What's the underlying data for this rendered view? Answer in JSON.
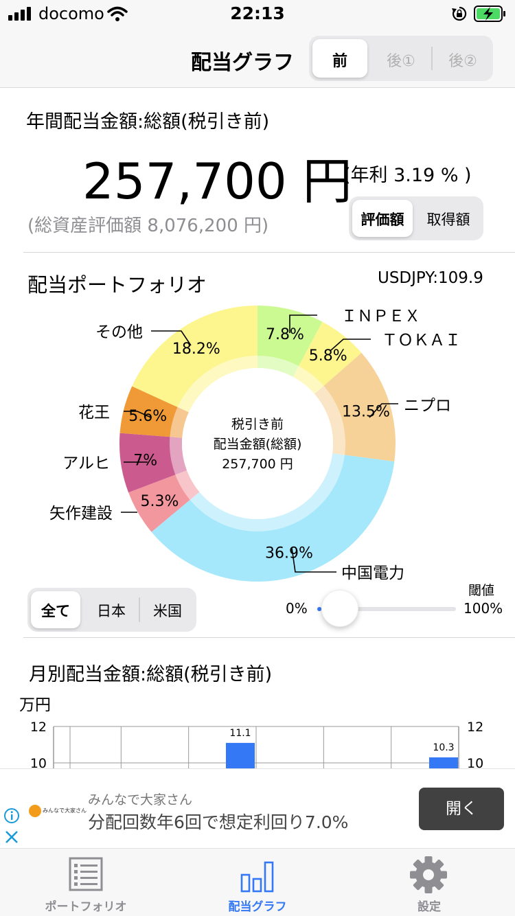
{
  "status": {
    "carrier": "docomo",
    "time": "22:13"
  },
  "nav": {
    "title": "配当グラフ",
    "segments": [
      "前",
      "後①",
      "後②"
    ],
    "selected": 0
  },
  "summary": {
    "heading": "年間配当金額:総額(税引き前)",
    "amount": "257,700 円",
    "yield": "(年利 3.19 % )",
    "assets": "(総資産評価額 8,076,200 円)",
    "toggle": [
      "評価額",
      "取得額"
    ],
    "toggle_selected": 0
  },
  "portfolio": {
    "heading": "配当ポートフォリオ",
    "fx": "USDJPY:109.9",
    "center_lines": [
      "税引き前",
      "配当金額(総額)",
      "257,700 円"
    ],
    "filter": [
      "全て",
      "日本",
      "米国"
    ],
    "filter_selected": 0,
    "threshold_label": "閾値",
    "threshold_min": "0%",
    "threshold_max": "100%",
    "threshold_value": 0
  },
  "chart_data": [
    {
      "type": "pie",
      "slices": [
        {
          "name": "ＩＮＰＥＸ",
          "value": 7.8,
          "label": "7.8%",
          "color": "#ccfa92"
        },
        {
          "name": "ＴＯＫＡＩ",
          "value": 5.8,
          "label": "5.8%",
          "color": "#fdf58e"
        },
        {
          "name": "ニプロ",
          "value": 13.5,
          "label": "13.5%",
          "color": "#f6d298"
        },
        {
          "name": "中国電力",
          "value": 36.9,
          "label": "36.9%",
          "color": "#a6e8fb"
        },
        {
          "name": "矢作建設",
          "value": 5.3,
          "label": "5.3%",
          "color": "#f3979e"
        },
        {
          "name": "アルヒ",
          "value": 7.0,
          "label": "7%",
          "color": "#cb5a8e"
        },
        {
          "name": "花王",
          "value": 5.6,
          "label": "5.6%",
          "color": "#f09a37"
        },
        {
          "name": "その他",
          "value": 18.2,
          "label": "18.2%",
          "color": "#fdf58e"
        }
      ]
    },
    {
      "type": "bar",
      "title": "月別配当金額:総額(税引き前)",
      "ylabel": "万円",
      "y_ticks": [
        "12",
        "10"
      ],
      "ylim_visible": [
        10,
        12
      ],
      "bars": [
        {
          "slot": 3,
          "value": 11.1,
          "label": "11.1"
        },
        {
          "slot": 6,
          "value": 10.3,
          "label": "10.3"
        }
      ],
      "bar_color": "#3478f6"
    }
  ],
  "ad": {
    "brand": "みんなで大家さん",
    "advertiser": "みんなで大家さん",
    "text": "分配回数年6回で想定利回り7.0%",
    "button": "開く"
  },
  "tabs": [
    {
      "label": "ポートフォリオ",
      "icon": "list-icon",
      "active": false
    },
    {
      "label": "配当グラフ",
      "icon": "bar-chart-icon",
      "active": true
    },
    {
      "label": "設定",
      "icon": "gear-icon",
      "active": false
    }
  ],
  "colors": {
    "accent": "#3478f6",
    "tab_inactive": "#8e8e93"
  }
}
